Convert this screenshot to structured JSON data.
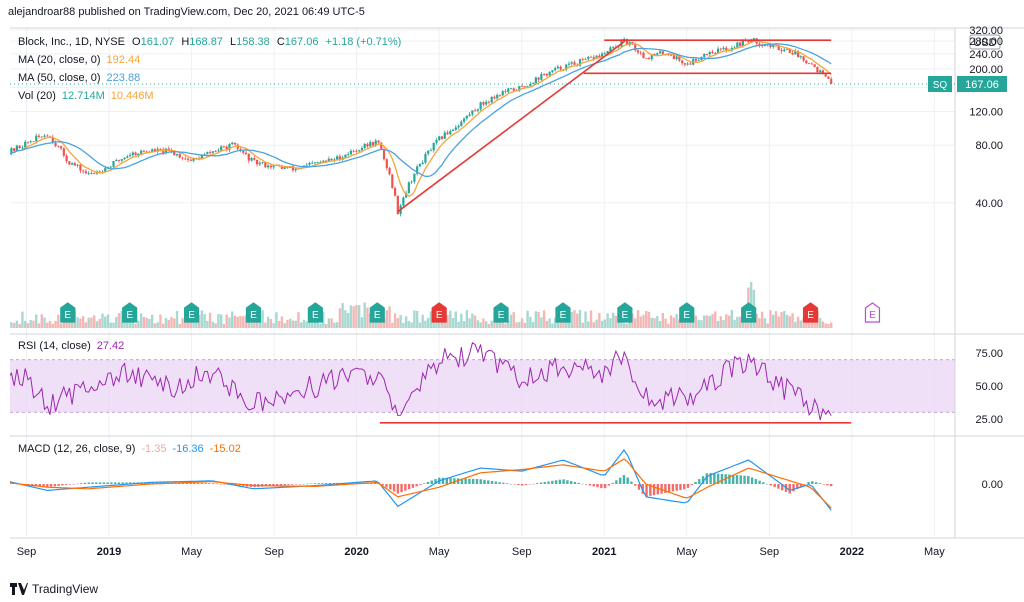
{
  "header": {
    "publisher": "alejandroar88 published on TradingView.com, Dec 20, 2021 06:49 UTC-5"
  },
  "legend": {
    "symbol": "Block, Inc., 1D, NYSE",
    "open_label": "O",
    "open": "161.07",
    "high_label": "H",
    "high": "168.87",
    "low_label": "L",
    "low": "158.38",
    "close_label": "C",
    "close": "167.06",
    "change": "+1.18 (+0.71%)",
    "ma20_label": "MA (20, close, 0)",
    "ma20_value": "192.44",
    "ma50_label": "MA (50, close, 0)",
    "ma50_value": "223.88",
    "vol_label": "Vol (20)",
    "vol_value": "12.714M",
    "vol_ma": "10.446M",
    "rsi_label": "RSI (14, close)",
    "rsi_value": "27.42",
    "macd_label": "MACD (12, 26, close, 9)",
    "macd_hist": "-1.35",
    "macd_line": "-16.36",
    "macd_signal": "-15.02"
  },
  "colors": {
    "up": "#26a69a",
    "down": "#ef5350",
    "ma20": "#f7a53b",
    "ma50": "#4aa3df",
    "rsi": "#9c27b0",
    "rsi_band": "#e9d6f5",
    "annotation": "#e53935",
    "macd": "#2196f3",
    "signal": "#ff6d00",
    "tag_bg": "#26a69a",
    "grid": "#eef0f3"
  },
  "brand": {
    "name": "TradingView",
    "icon": "tradingview-logo-icon"
  },
  "chart_data": [
    {
      "type": "candlestick",
      "title": "Block, Inc., 1D, NYSE",
      "currency": "USD",
      "y_ticks": [
        "40.00",
        "80.00",
        "120.00",
        "160.00",
        "200.00",
        "240.00",
        "280.00",
        "320.00"
      ],
      "ylim": [
        10,
        320
      ],
      "scale": "log",
      "last_price_tag": {
        "symbol": "SQ",
        "value": "167.06"
      },
      "x_ticks": [
        "Sep",
        "2019",
        "May",
        "Sep",
        "2020",
        "May",
        "Sep",
        "2021",
        "May",
        "Sep",
        "2022",
        "May"
      ],
      "price_path": [
        [
          "2018-08",
          72
        ],
        [
          "2018-09",
          82
        ],
        [
          "2018-10",
          92
        ],
        [
          "2018-11",
          66
        ],
        [
          "2018-12",
          56
        ],
        [
          "2019-01",
          62
        ],
        [
          "2019-02",
          72
        ],
        [
          "2019-03",
          75
        ],
        [
          "2019-04",
          74
        ],
        [
          "2019-05",
          66
        ],
        [
          "2019-06",
          74
        ],
        [
          "2019-07",
          80
        ],
        [
          "2019-08",
          65
        ],
        [
          "2019-09",
          62
        ],
        [
          "2019-10",
          60
        ],
        [
          "2019-11",
          64
        ],
        [
          "2019-12",
          68
        ],
        [
          "2020-01",
          76
        ],
        [
          "2020-02",
          84
        ],
        [
          "2020-03",
          36
        ],
        [
          "2020-04",
          62
        ],
        [
          "2020-05",
          86
        ],
        [
          "2020-06",
          104
        ],
        [
          "2020-07",
          130
        ],
        [
          "2020-08",
          150
        ],
        [
          "2020-09",
          160
        ],
        [
          "2020-10",
          185
        ],
        [
          "2020-11",
          205
        ],
        [
          "2020-12",
          220
        ],
        [
          "2021-01",
          240
        ],
        [
          "2021-02",
          280
        ],
        [
          "2021-03",
          230
        ],
        [
          "2021-04",
          245
        ],
        [
          "2021-05",
          210
        ],
        [
          "2021-06",
          245
        ],
        [
          "2021-07",
          255
        ],
        [
          "2021-08",
          285
        ],
        [
          "2021-09",
          265
        ],
        [
          "2021-10",
          250
        ],
        [
          "2021-11",
          215
        ],
        [
          "2021-12",
          167.06
        ]
      ],
      "annotations": [
        {
          "kind": "horizontal",
          "y": 283,
          "from": "2021-01",
          "to": "2021-12"
        },
        {
          "kind": "horizontal",
          "y": 190,
          "from": "2020-12",
          "to": "2021-12"
        },
        {
          "kind": "trendline",
          "from": [
            "2020-03",
            36
          ],
          "to": [
            "2021-02",
            280
          ]
        }
      ],
      "earnings_markers": [
        "2018-11",
        "2019-02",
        "2019-05",
        "2019-08",
        "2019-11",
        "2020-02",
        "2020-05",
        "2020-08",
        "2020-11",
        "2021-02",
        "2021-05",
        "2021-08",
        "2021-11",
        "2022-02"
      ],
      "earnings_marker_label": "E"
    },
    {
      "type": "line",
      "title": "RSI (14, close)",
      "y_ticks": [
        "25.00",
        "50.00",
        "75.00"
      ],
      "band": [
        30,
        70
      ],
      "ylim": [
        15,
        85
      ],
      "values_path": [
        [
          "2018-08",
          60
        ],
        [
          "2018-09",
          55
        ],
        [
          "2018-10",
          35
        ],
        [
          "2018-11",
          42
        ],
        [
          "2018-12",
          50
        ],
        [
          "2019-02",
          60
        ],
        [
          "2019-04",
          48
        ],
        [
          "2019-06",
          62
        ],
        [
          "2019-08",
          35
        ],
        [
          "2019-10",
          45
        ],
        [
          "2019-12",
          55
        ],
        [
          "2020-02",
          60
        ],
        [
          "2020-03",
          25
        ],
        [
          "2020-05",
          70
        ],
        [
          "2020-07",
          75
        ],
        [
          "2020-09",
          55
        ],
        [
          "2020-11",
          65
        ],
        [
          "2021-01",
          60
        ],
        [
          "2021-02",
          75
        ],
        [
          "2021-03",
          40
        ],
        [
          "2021-05",
          40
        ],
        [
          "2021-07",
          62
        ],
        [
          "2021-08",
          70
        ],
        [
          "2021-10",
          45
        ],
        [
          "2021-11",
          35
        ],
        [
          "2021-12",
          27.42
        ]
      ],
      "annotation_level": 22
    },
    {
      "type": "line",
      "title": "MACD (12, 26, close, 9)",
      "y_ticks": [
        "0.00"
      ],
      "ylim": [
        -30,
        25
      ],
      "macd_path": [
        [
          "2018-08",
          2
        ],
        [
          "2018-10",
          -4
        ],
        [
          "2018-12",
          -2
        ],
        [
          "2019-03",
          1
        ],
        [
          "2019-06",
          2
        ],
        [
          "2019-08",
          -3
        ],
        [
          "2019-11",
          -1
        ],
        [
          "2020-02",
          2
        ],
        [
          "2020-03",
          -14
        ],
        [
          "2020-05",
          2
        ],
        [
          "2020-07",
          10
        ],
        [
          "2020-09",
          8
        ],
        [
          "2020-11",
          15
        ],
        [
          "2021-01",
          5
        ],
        [
          "2021-02",
          22
        ],
        [
          "2021-03",
          -8
        ],
        [
          "2021-05",
          -12
        ],
        [
          "2021-06",
          5
        ],
        [
          "2021-08",
          15
        ],
        [
          "2021-10",
          -4
        ],
        [
          "2021-11",
          0
        ],
        [
          "2021-12",
          -16.36
        ]
      ],
      "signal_path": [
        [
          "2018-08",
          1
        ],
        [
          "2018-10",
          -2
        ],
        [
          "2018-12",
          -3
        ],
        [
          "2019-03",
          0
        ],
        [
          "2019-06",
          1.5
        ],
        [
          "2019-08",
          -1
        ],
        [
          "2019-11",
          -1.5
        ],
        [
          "2020-02",
          1
        ],
        [
          "2020-03",
          -8
        ],
        [
          "2020-05",
          -2
        ],
        [
          "2020-07",
          7
        ],
        [
          "2020-09",
          9
        ],
        [
          "2020-11",
          12
        ],
        [
          "2021-01",
          8
        ],
        [
          "2021-02",
          16
        ],
        [
          "2021-03",
          0
        ],
        [
          "2021-05",
          -9
        ],
        [
          "2021-06",
          -2
        ],
        [
          "2021-08",
          10
        ],
        [
          "2021-10",
          2
        ],
        [
          "2021-11",
          -2
        ],
        [
          "2021-12",
          -15.02
        ]
      ]
    }
  ]
}
